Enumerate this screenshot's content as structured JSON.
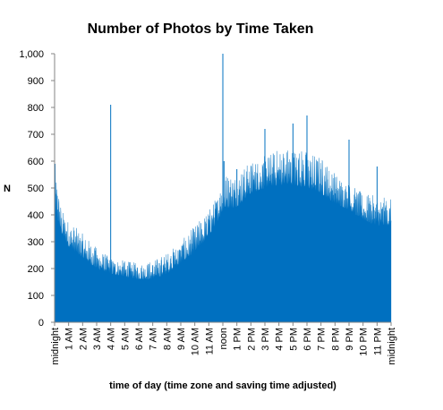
{
  "chart_data": {
    "type": "area",
    "title": "Number of Photos by Time Taken",
    "xlabel": "time of day (time zone and saving time adjusted)",
    "ylabel": "N",
    "ylim": [
      0,
      1000
    ],
    "y_ticks": [
      "0",
      "100",
      "200",
      "300",
      "400",
      "500",
      "600",
      "700",
      "800",
      "900",
      "1,000"
    ],
    "x_tick_labels": [
      "midnight",
      "1 AM",
      "2 AM",
      "3 AM",
      "4 AM",
      "5 AM",
      "6 AM",
      "7 AM",
      "8 AM",
      "9 AM",
      "10 AM",
      "11 AM",
      "noon",
      "1 PM",
      "2 PM",
      "3 PM",
      "4 PM",
      "5 PM",
      "6 PM",
      "7 PM",
      "8 PM",
      "9 PM",
      "10 PM",
      "11 PM",
      "midnight"
    ],
    "x_unit": "minute of day",
    "x_range": [
      0,
      1440
    ],
    "grid": false,
    "legend": "none",
    "series_color": "#0070C0",
    "envelope": {
      "x": [
        0,
        30,
        60,
        120,
        180,
        240,
        300,
        360,
        420,
        480,
        540,
        600,
        660,
        700,
        720,
        780,
        840,
        900,
        960,
        1020,
        1080,
        1140,
        1200,
        1260,
        1320,
        1380,
        1440
      ],
      "baseline": [
        420,
        330,
        280,
        240,
        200,
        180,
        170,
        160,
        160,
        180,
        220,
        260,
        320,
        380,
        420,
        430,
        480,
        500,
        510,
        510,
        500,
        480,
        440,
        420,
        380,
        360,
        360
      ],
      "peak": [
        600,
        420,
        380,
        330,
        280,
        240,
        230,
        220,
        230,
        260,
        300,
        360,
        420,
        480,
        560,
        560,
        600,
        620,
        650,
        660,
        640,
        620,
        560,
        520,
        480,
        470,
        460
      ]
    },
    "spikes": [
      {
        "x": 2,
        "y": 590
      },
      {
        "x": 240,
        "y": 810
      },
      {
        "x": 720,
        "y": 1000
      },
      {
        "x": 725,
        "y": 600
      },
      {
        "x": 1080,
        "y": 770
      },
      {
        "x": 1020,
        "y": 740
      },
      {
        "x": 1260,
        "y": 680
      },
      {
        "x": 900,
        "y": 720
      },
      {
        "x": 780,
        "y": 570
      },
      {
        "x": 1380,
        "y": 580
      }
    ]
  }
}
